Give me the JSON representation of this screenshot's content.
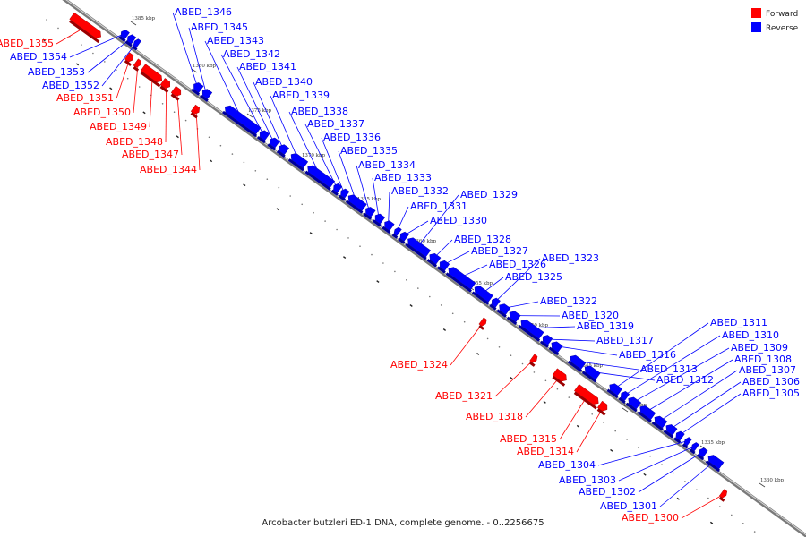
{
  "caption": "Arcobacter butzleri ED-1 DNA, complete genome. - 0..2256675",
  "colors": {
    "forward": "#ff0000",
    "reverse": "#0000ff",
    "backbone": "#888888"
  },
  "legend": [
    {
      "name": "Forward",
      "color": "#ff0000"
    },
    {
      "name": "Reverse",
      "color": "#0000ff"
    }
  ],
  "ticks": [
    {
      "label": "1385 kbp",
      "pos": 1385
    },
    {
      "label": "1380 kbp",
      "pos": 1380
    },
    {
      "label": "1375 kbp",
      "pos": 1375
    },
    {
      "label": "1370 kbp",
      "pos": 1370
    },
    {
      "label": "1365 kbp",
      "pos": 1365
    },
    {
      "label": "1360 kbp",
      "pos": 1360
    },
    {
      "label": "1355 kbp",
      "pos": 1355
    },
    {
      "label": "1350 kbp",
      "pos": 1350
    },
    {
      "label": "1345 kbp",
      "pos": 1345
    },
    {
      "label": "1340 kbp",
      "pos": 1340
    },
    {
      "label": "1335 kbp",
      "pos": 1335
    },
    {
      "label": "1330 kbp",
      "pos": 1330
    }
  ],
  "genes": [
    {
      "name": "ABED_1355",
      "strand": "forward"
    },
    {
      "name": "ABED_1354",
      "strand": "reverse"
    },
    {
      "name": "ABED_1353",
      "strand": "reverse"
    },
    {
      "name": "ABED_1352",
      "strand": "reverse"
    },
    {
      "name": "ABED_1351",
      "strand": "forward"
    },
    {
      "name": "ABED_1350",
      "strand": "forward"
    },
    {
      "name": "ABED_1349",
      "strand": "forward"
    },
    {
      "name": "ABED_1348",
      "strand": "forward"
    },
    {
      "name": "ABED_1347",
      "strand": "forward"
    },
    {
      "name": "ABED_1344",
      "strand": "forward"
    },
    {
      "name": "ABED_1346",
      "strand": "reverse"
    },
    {
      "name": "ABED_1345",
      "strand": "reverse"
    },
    {
      "name": "ABED_1343",
      "strand": "reverse"
    },
    {
      "name": "ABED_1342",
      "strand": "reverse"
    },
    {
      "name": "ABED_1341",
      "strand": "reverse"
    },
    {
      "name": "ABED_1340",
      "strand": "reverse"
    },
    {
      "name": "ABED_1339",
      "strand": "reverse"
    },
    {
      "name": "ABED_1338",
      "strand": "reverse"
    },
    {
      "name": "ABED_1337",
      "strand": "reverse"
    },
    {
      "name": "ABED_1336",
      "strand": "reverse"
    },
    {
      "name": "ABED_1335",
      "strand": "reverse"
    },
    {
      "name": "ABED_1334",
      "strand": "reverse"
    },
    {
      "name": "ABED_1333",
      "strand": "reverse"
    },
    {
      "name": "ABED_1332",
      "strand": "reverse"
    },
    {
      "name": "ABED_1331",
      "strand": "reverse"
    },
    {
      "name": "ABED_1330",
      "strand": "reverse"
    },
    {
      "name": "ABED_1329",
      "strand": "reverse"
    },
    {
      "name": "ABED_1328",
      "strand": "reverse"
    },
    {
      "name": "ABED_1327",
      "strand": "reverse"
    },
    {
      "name": "ABED_1326",
      "strand": "reverse"
    },
    {
      "name": "ABED_1325",
      "strand": "reverse"
    },
    {
      "name": "ABED_1323",
      "strand": "reverse"
    },
    {
      "name": "ABED_1322",
      "strand": "reverse"
    },
    {
      "name": "ABED_1320",
      "strand": "reverse"
    },
    {
      "name": "ABED_1319",
      "strand": "reverse"
    },
    {
      "name": "ABED_1317",
      "strand": "reverse"
    },
    {
      "name": "ABED_1316",
      "strand": "reverse"
    },
    {
      "name": "ABED_1313",
      "strand": "reverse"
    },
    {
      "name": "ABED_1312",
      "strand": "reverse"
    },
    {
      "name": "ABED_1311",
      "strand": "reverse"
    },
    {
      "name": "ABED_1310",
      "strand": "reverse"
    },
    {
      "name": "ABED_1309",
      "strand": "reverse"
    },
    {
      "name": "ABED_1308",
      "strand": "reverse"
    },
    {
      "name": "ABED_1307",
      "strand": "reverse"
    },
    {
      "name": "ABED_1306",
      "strand": "reverse"
    },
    {
      "name": "ABED_1305",
      "strand": "reverse"
    },
    {
      "name": "ABED_1324",
      "strand": "forward"
    },
    {
      "name": "ABED_1321",
      "strand": "forward"
    },
    {
      "name": "ABED_1318",
      "strand": "forward"
    },
    {
      "name": "ABED_1315",
      "strand": "forward"
    },
    {
      "name": "ABED_1314",
      "strand": "forward"
    },
    {
      "name": "ABED_1304",
      "strand": "reverse"
    },
    {
      "name": "ABED_1303",
      "strand": "reverse"
    },
    {
      "name": "ABED_1302",
      "strand": "reverse"
    },
    {
      "name": "ABED_1301",
      "strand": "reverse"
    },
    {
      "name": "ABED_1300",
      "strand": "forward"
    }
  ]
}
